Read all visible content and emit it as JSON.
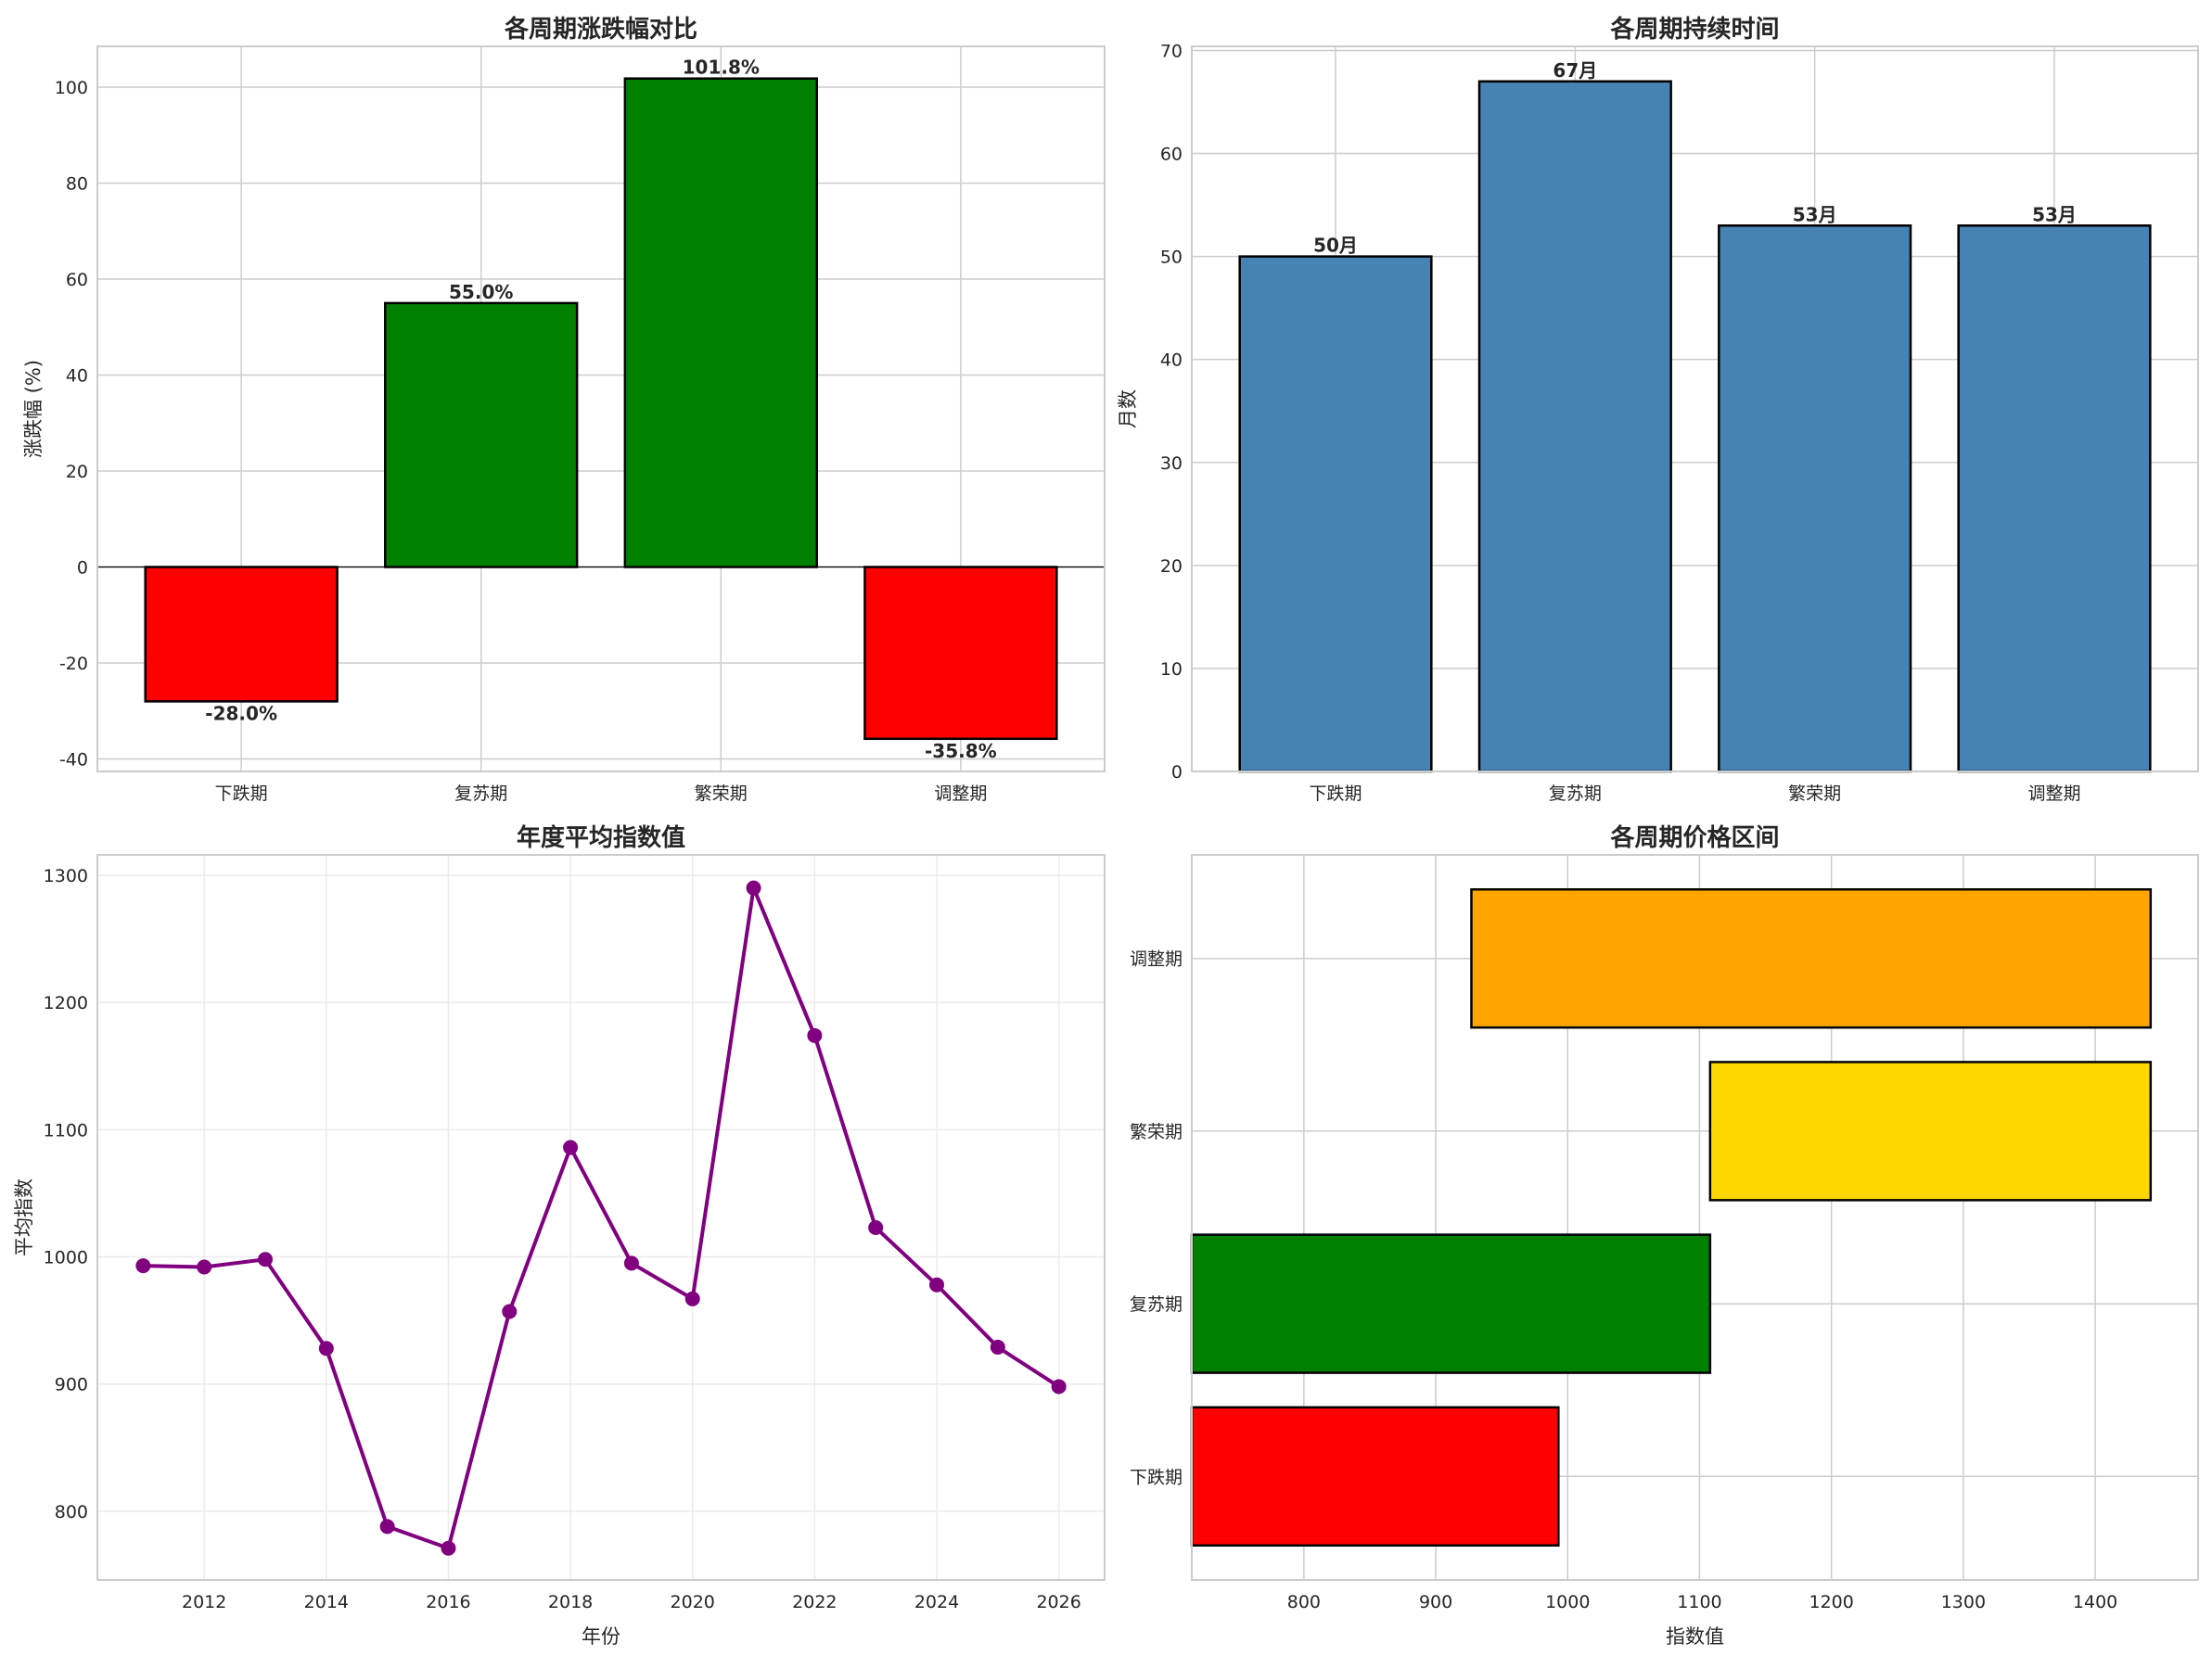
{
  "chart_data": [
    {
      "type": "bar",
      "title": "各周期涨跌幅对比",
      "xlabel": "",
      "ylabel": "涨跌幅 (%)",
      "categories": [
        "下跌期",
        "复苏期",
        "繁荣期",
        "调整期"
      ],
      "values": [
        -28.0,
        55.0,
        101.8,
        -35.8
      ],
      "value_labels": [
        "-28.0%",
        "55.0%",
        "101.8%",
        "-35.8%"
      ],
      "colors": [
        "#ff0000",
        "#008000",
        "#008000",
        "#ff0000"
      ],
      "ylim": [
        -42.6,
        108.5
      ],
      "yticks": [
        -40,
        -20,
        0,
        20,
        40,
        60,
        80,
        100
      ],
      "zero_line": true,
      "grid": true
    },
    {
      "type": "bar",
      "title": "各周期持续时间",
      "xlabel": "",
      "ylabel": "月数",
      "categories": [
        "下跌期",
        "复苏期",
        "繁荣期",
        "调整期"
      ],
      "values": [
        50,
        67,
        53,
        53
      ],
      "value_labels": [
        "50月",
        "67月",
        "53月",
        "53月"
      ],
      "colors": [
        "#4682b4",
        "#4682b4",
        "#4682b4",
        "#4682b4"
      ],
      "ylim": [
        0,
        70.4
      ],
      "yticks": [
        0,
        10,
        20,
        30,
        40,
        50,
        60,
        70
      ],
      "grid": true
    },
    {
      "type": "line",
      "title": "年度平均指数值",
      "xlabel": "年份",
      "ylabel": "平均指数",
      "x": [
        2011,
        2012,
        2013,
        2014,
        2015,
        2016,
        2017,
        2018,
        2019,
        2020,
        2021,
        2022,
        2023,
        2024,
        2025,
        2026
      ],
      "y": [
        993,
        992,
        998,
        928,
        788,
        771,
        957,
        1086,
        995,
        967,
        1290,
        1174,
        1023,
        978,
        929,
        898
      ],
      "color": "#800080",
      "xlim": [
        2010.25,
        2026.75
      ],
      "ylim": [
        746,
        1316
      ],
      "xticks": [
        2012,
        2014,
        2016,
        2018,
        2020,
        2022,
        2024,
        2026
      ],
      "yticks": [
        800,
        900,
        1000,
        1100,
        1200,
        1300
      ],
      "grid": true
    },
    {
      "type": "bar",
      "orientation": "horizontal",
      "title": "各周期价格区间",
      "xlabel": "指数值",
      "ylabel": "",
      "categories": [
        "下跌期",
        "复苏期",
        "繁荣期",
        "调整期"
      ],
      "min": [
        715,
        715,
        1108,
        927
      ],
      "max": [
        993,
        1108,
        1442,
        1442
      ],
      "colors": [
        "#ff0000",
        "#008000",
        "#ffd700",
        "#ffa500"
      ],
      "xlim": [
        715,
        1478
      ],
      "xticks": [
        800,
        900,
        1000,
        1100,
        1200,
        1300,
        1400
      ],
      "grid": true
    }
  ]
}
